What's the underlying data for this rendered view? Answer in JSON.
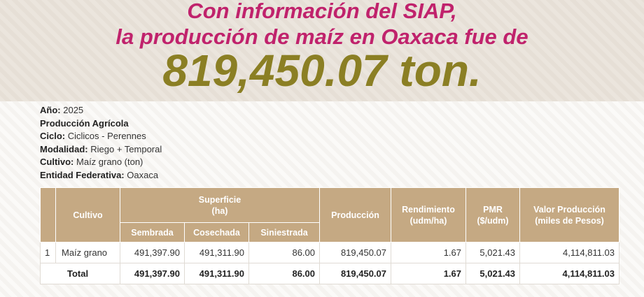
{
  "header": {
    "title_lines": [
      "Con información del SIAP,",
      "la producción de maíz en Oaxaca fue de"
    ],
    "highlight": "819,450.07 ton."
  },
  "info": [
    {
      "label": "Año:",
      "value": "2025"
    },
    {
      "label": "Producción Agrícola"
    },
    {
      "label": "Ciclo:",
      "value": "Ciclicos - Perennes"
    },
    {
      "label": "Modalidad:",
      "value": "Riego + Temporal"
    },
    {
      "label": "Cultivo:",
      "value": "Maíz grano (ton)"
    },
    {
      "label": "Entidad Federativa:",
      "value": "Oaxaca"
    }
  ],
  "table": {
    "headers": {
      "cultivo": "Cultivo",
      "superficie": [
        "Superficie",
        "(ha)"
      ],
      "superficie_sub": [
        "Sembrada",
        "Cosechada",
        "Siniestrada"
      ],
      "produccion": "Producción",
      "rendimiento": [
        "Rendimiento",
        "(udm/ha)"
      ],
      "pmr": [
        "PMR",
        "($/udm)"
      ],
      "valor": [
        "Valor Producción",
        "(miles de Pesos)"
      ]
    },
    "rows": [
      [
        "1",
        "Maíz grano",
        "491,397.90",
        "491,311.90",
        "86.00",
        "819,450.07",
        "1.67",
        "5,021.43",
        "4,114,811.03"
      ]
    ],
    "total": [
      "Total",
      "491,397.90",
      "491,311.90",
      "86.00",
      "819,450.07",
      "1.67",
      "5,021.43",
      "4,114,811.03"
    ]
  }
}
